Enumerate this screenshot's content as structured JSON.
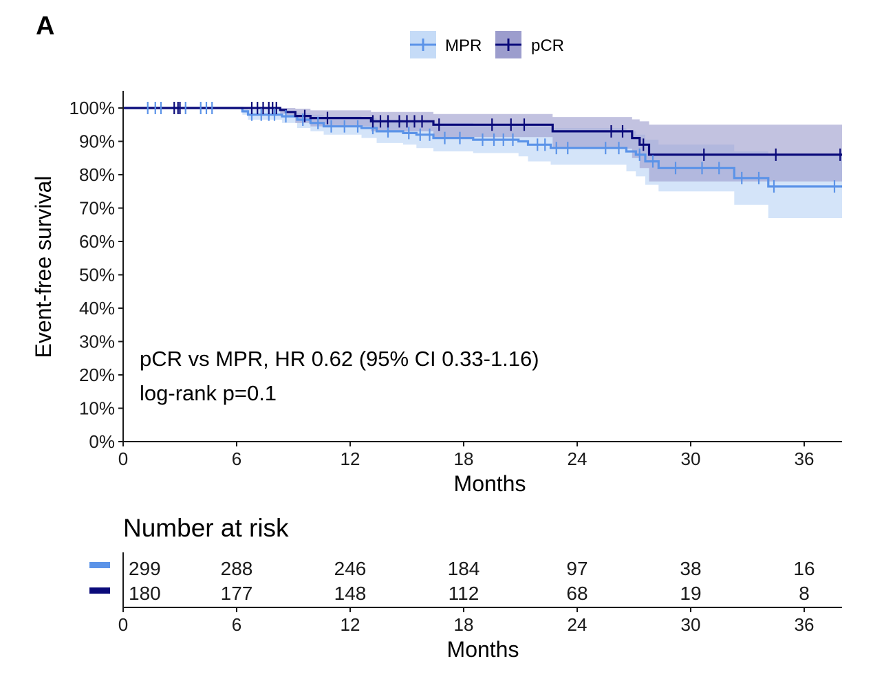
{
  "panel_label": "A",
  "colors": {
    "mpr": "#5b93e8",
    "mpr_band": "#c5dbf7",
    "pcr": "#0a0a7a",
    "pcr_band": "#9c9dcd",
    "axis": "#1a1a1a"
  },
  "chart_data": {
    "type": "line",
    "subtype": "kaplan-meier",
    "title": "",
    "xlabel": "Months",
    "ylabel": "Event-free survival",
    "xlim": [
      0,
      38
    ],
    "ylim": [
      0,
      100
    ],
    "xticks": [
      0,
      6,
      12,
      18,
      24,
      30,
      36
    ],
    "yticks": [
      0,
      10,
      20,
      30,
      40,
      50,
      60,
      70,
      80,
      90,
      100
    ],
    "ytick_labels": [
      "0%",
      "10%",
      "20%",
      "30%",
      "40%",
      "50%",
      "60%",
      "70%",
      "80%",
      "90%",
      "100%"
    ],
    "legend": {
      "position": "top-center",
      "entries": [
        "MPR",
        "pCR"
      ]
    },
    "annotations": [
      "pCR vs MPR, HR 0.62 (95% CI 0.33-1.16)",
      "log-rank p=0.1"
    ],
    "series": [
      {
        "name": "MPR",
        "steps": [
          [
            0,
            100
          ],
          [
            6.3,
            99
          ],
          [
            6.6,
            98
          ],
          [
            8.4,
            97.5
          ],
          [
            9.2,
            96.5
          ],
          [
            9.9,
            95.5
          ],
          [
            10.6,
            94.5
          ],
          [
            12.6,
            94
          ],
          [
            13.4,
            93
          ],
          [
            14.8,
            92.5
          ],
          [
            15.5,
            92
          ],
          [
            16.4,
            91
          ],
          [
            18.5,
            90.5
          ],
          [
            20.9,
            90
          ],
          [
            21.4,
            89
          ],
          [
            22.6,
            88
          ],
          [
            26.6,
            87
          ],
          [
            27.1,
            86
          ],
          [
            27.6,
            84
          ],
          [
            28.3,
            82
          ],
          [
            32.3,
            79
          ],
          [
            34.1,
            76.5
          ],
          [
            38,
            76.5
          ]
        ],
        "ci_steps": [
          [
            0,
            100,
            100
          ],
          [
            6.3,
            100,
            98
          ],
          [
            6.6,
            99.5,
            96.5
          ],
          [
            8.4,
            99,
            95.5
          ],
          [
            9.2,
            98.5,
            94
          ],
          [
            9.9,
            98,
            93
          ],
          [
            10.6,
            97.5,
            92
          ],
          [
            12.6,
            97,
            91
          ],
          [
            13.4,
            96.5,
            89.5
          ],
          [
            14.8,
            96,
            89
          ],
          [
            15.5,
            96,
            88
          ],
          [
            16.4,
            95.5,
            87
          ],
          [
            18.5,
            95,
            86.5
          ],
          [
            20.9,
            95,
            85.5
          ],
          [
            21.4,
            94.5,
            84
          ],
          [
            22.6,
            94,
            83
          ],
          [
            26.6,
            93,
            81
          ],
          [
            27.1,
            92,
            79.5
          ],
          [
            27.6,
            90.5,
            77
          ],
          [
            28.3,
            89,
            75
          ],
          [
            32.3,
            87,
            71
          ],
          [
            34.1,
            86,
            67
          ],
          [
            38,
            86,
            67
          ]
        ],
        "censor_times": [
          1.3,
          1.7,
          2,
          3,
          3.3,
          4.1,
          4.4,
          4.7,
          6.8,
          7.3,
          7.7,
          8,
          8.6,
          9.5,
          10.3,
          11,
          11.7,
          12.4,
          13.2,
          14,
          15.1,
          15.7,
          16.2,
          17,
          17.8,
          19,
          19.6,
          20.1,
          20.6,
          21.9,
          22.3,
          22.9,
          23.5,
          25.5,
          26.2,
          27.3,
          28,
          29.2,
          30.6,
          31.5,
          32.7,
          33.6,
          34.4,
          37.6
        ],
        "risk": [
          299,
          288,
          246,
          184,
          97,
          38,
          16
        ]
      },
      {
        "name": "pCR",
        "steps": [
          [
            0,
            100
          ],
          [
            8.3,
            99.4
          ],
          [
            8.6,
            98.8
          ],
          [
            9.1,
            97.6
          ],
          [
            9.9,
            97
          ],
          [
            13.1,
            96
          ],
          [
            16.4,
            95
          ],
          [
            22.7,
            93
          ],
          [
            26.9,
            91
          ],
          [
            27.3,
            89
          ],
          [
            27.8,
            86
          ],
          [
            38,
            86
          ]
        ],
        "ci_steps": [
          [
            0,
            100,
            100
          ],
          [
            8.3,
            100,
            98.3
          ],
          [
            8.6,
            100,
            97.3
          ],
          [
            9.1,
            99.8,
            95.5
          ],
          [
            9.9,
            99.3,
            94.5
          ],
          [
            13.1,
            98.8,
            93
          ],
          [
            16.4,
            98.2,
            91.3
          ],
          [
            22.7,
            97.3,
            87.8
          ],
          [
            26.9,
            96.6,
            85
          ],
          [
            27.3,
            96,
            82
          ],
          [
            27.8,
            95,
            78
          ],
          [
            38,
            95,
            78
          ]
        ],
        "censor_times": [
          2.7,
          2.9,
          3,
          6.8,
          7.1,
          7.4,
          7.7,
          7.9,
          8.1,
          9.6,
          10.8,
          13.2,
          13.6,
          14,
          14.6,
          15,
          15.4,
          15.8,
          16.7,
          19.5,
          20.5,
          21.2,
          25.8,
          26.4,
          27.5,
          30.7,
          34.5,
          37.9
        ],
        "risk": [
          180,
          177,
          148,
          112,
          68,
          19,
          8
        ]
      }
    ]
  },
  "risk_table": {
    "title": "Number at risk",
    "xlabel": "Months",
    "xticks": [
      0,
      6,
      12,
      18,
      24,
      30,
      36
    ],
    "rows": [
      {
        "name": "MPR",
        "values": [
          "299",
          "288",
          "246",
          "184",
          "97",
          "38",
          "16"
        ]
      },
      {
        "name": "pCR",
        "values": [
          "180",
          "177",
          "148",
          "112",
          "68",
          "19",
          "8"
        ]
      }
    ]
  }
}
